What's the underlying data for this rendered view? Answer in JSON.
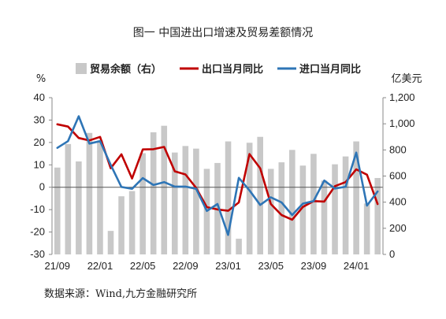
{
  "title": "图一 中国进出口增速及贸易差额情况",
  "source": "数据来源：Wind,九方金融研究所",
  "chart_data": {
    "type": "bar+line",
    "left_unit": "%",
    "right_unit": "亿美元",
    "left_ylim": [
      -30,
      40
    ],
    "left_ticks": [
      -30,
      -20,
      -10,
      0,
      10,
      20,
      30,
      40
    ],
    "right_ylim": [
      0,
      1200
    ],
    "right_ticks": [
      0,
      200,
      400,
      600,
      800,
      1000,
      1200
    ],
    "right_tick_labels": [
      "0",
      "200",
      "400",
      "600",
      "800",
      "1,000",
      "1,200"
    ],
    "x_tick_labels": [
      "21/09",
      "22/01",
      "22/05",
      "22/09",
      "23/01",
      "23/05",
      "23/09",
      "24/01"
    ],
    "categories": [
      "21/09",
      "21/10",
      "21/11",
      "21/12",
      "22/01",
      "22/02",
      "22/03",
      "22/04",
      "22/05",
      "22/06",
      "22/07",
      "22/08",
      "22/09",
      "22/10",
      "22/11",
      "22/12",
      "23/01",
      "23/02",
      "23/03",
      "23/04",
      "23/05",
      "23/06",
      "23/07",
      "23/08",
      "23/09",
      "23/10",
      "23/11",
      "23/12",
      "24/01",
      "24/02",
      "24/03"
    ],
    "legend_position": "top",
    "series": [
      {
        "name": "贸易余额（右）",
        "type": "bar",
        "axis": "right",
        "color": "#c8c8c8",
        "values": [
          665,
          845,
          712,
          930,
          872,
          180,
          445,
          485,
          775,
          935,
          985,
          780,
          830,
          810,
          655,
          700,
          865,
          120,
          855,
          900,
          655,
          705,
          800,
          680,
          770,
          565,
          690,
          750,
          865,
          390,
          585
        ]
      },
      {
        "name": "出口当月同比",
        "type": "line",
        "axis": "left",
        "color": "#c00000",
        "values": [
          28.1,
          27.1,
          22.0,
          20.9,
          22.5,
          8.5,
          14.7,
          3.9,
          16.9,
          17.0,
          18.0,
          7.1,
          5.7,
          -0.3,
          -8.9,
          -9.9,
          -10.5,
          -6.8,
          14.8,
          8.5,
          -7.5,
          -12.4,
          -14.5,
          -8.8,
          -6.2,
          -6.4,
          0.5,
          2.3,
          8.0,
          5.6,
          -7.5
        ]
      },
      {
        "name": "进口当月同比",
        "type": "line",
        "axis": "left",
        "color": "#2e75b6",
        "values": [
          17.6,
          20.6,
          31.7,
          19.5,
          20.6,
          10.0,
          0.1,
          -0.7,
          4.1,
          1.0,
          2.3,
          0.3,
          0.3,
          -0.7,
          -10.6,
          -7.5,
          -21.3,
          4.2,
          -1.4,
          -7.9,
          -4.5,
          -6.8,
          -12.4,
          -7.3,
          -6.2,
          3.0,
          -0.6,
          0.2,
          15.5,
          -8.2,
          -1.9
        ]
      }
    ]
  }
}
